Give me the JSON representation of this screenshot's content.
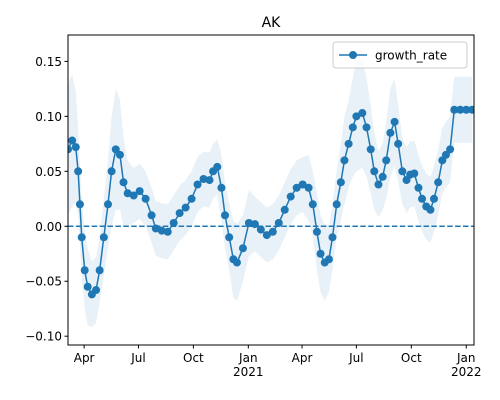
{
  "chart_data": {
    "type": "line",
    "title": "AK",
    "x": [
      18326,
      18333,
      18339,
      18343,
      18346,
      18349,
      18354,
      18359,
      18366,
      18373,
      18379,
      18386,
      18393,
      18399,
      18406,
      18413,
      18419,
      18426,
      18436,
      18446,
      18456,
      18466,
      18473,
      18483,
      18493,
      18503,
      18513,
      18523,
      18533,
      18543,
      18553,
      18563,
      18569,
      18576,
      18583,
      18589,
      18596,
      18603,
      18609,
      18619,
      18629,
      18639,
      18649,
      18659,
      18669,
      18679,
      18689,
      18699,
      18709,
      18719,
      18729,
      18736,
      18743,
      18749,
      18756,
      18763,
      18769,
      18776,
      18783,
      18789,
      18796,
      18803,
      18809,
      18819,
      18826,
      18833,
      18839,
      18846,
      18853,
      18859,
      18866,
      18873,
      18879,
      18886,
      18893,
      18899,
      18906,
      18913,
      18919,
      18926,
      18933,
      18939,
      18946,
      18953,
      18959,
      18966,
      18973,
      18983,
      18993,
      19003
    ],
    "series": [
      {
        "name": "growth_rate",
        "color": "#1f77b4",
        "values": [
          0.07,
          0.078,
          0.072,
          0.05,
          0.02,
          -0.01,
          -0.04,
          -0.055,
          -0.062,
          -0.058,
          -0.04,
          -0.01,
          0.02,
          0.05,
          0.07,
          0.065,
          0.04,
          0.03,
          0.028,
          0.032,
          0.025,
          0.01,
          -0.002,
          -0.004,
          -0.005,
          0.003,
          0.012,
          0.017,
          0.025,
          0.038,
          0.043,
          0.042,
          0.05,
          0.054,
          0.035,
          0.01,
          -0.01,
          -0.03,
          -0.033,
          -0.02,
          0.003,
          0.002,
          -0.003,
          -0.008,
          -0.005,
          0.003,
          0.015,
          0.027,
          0.035,
          0.038,
          0.035,
          0.02,
          -0.005,
          -0.025,
          -0.033,
          -0.03,
          -0.01,
          0.02,
          0.04,
          0.06,
          0.075,
          0.09,
          0.1,
          0.103,
          0.09,
          0.07,
          0.05,
          0.038,
          0.045,
          0.06,
          0.085,
          0.095,
          0.075,
          0.05,
          0.042,
          0.047,
          0.048,
          0.035,
          0.025,
          0.018,
          0.015,
          0.025,
          0.04,
          0.06,
          0.065,
          0.07,
          0.106,
          0.106,
          0.106,
          0.106
        ]
      }
    ],
    "band": {
      "color": "#1f77b4",
      "lower": [
        0.01,
        0.018,
        0.022,
        0.01,
        -0.015,
        -0.045,
        -0.075,
        -0.09,
        -0.092,
        -0.088,
        -0.07,
        -0.045,
        -0.02,
        0,
        0.015,
        0.015,
        0,
        0,
        0.003,
        0.007,
        0,
        -0.015,
        -0.027,
        -0.029,
        -0.03,
        -0.022,
        -0.013,
        -0.008,
        0,
        0.013,
        0.018,
        0.017,
        0.025,
        0.029,
        0.005,
        -0.02,
        -0.04,
        -0.065,
        -0.068,
        -0.05,
        -0.027,
        -0.023,
        -0.028,
        -0.033,
        -0.03,
        -0.022,
        -0.01,
        0.002,
        0.01,
        0.013,
        0.005,
        -0.01,
        -0.04,
        -0.06,
        -0.068,
        -0.06,
        -0.04,
        -0.01,
        0.005,
        0.02,
        0.035,
        0.045,
        0.05,
        0.053,
        0.045,
        0.03,
        0.015,
        0.008,
        0.015,
        0.025,
        0.045,
        0.055,
        0.04,
        0.02,
        0.012,
        0.017,
        0.018,
        0.005,
        -0.005,
        -0.012,
        -0.015,
        -0.005,
        0.01,
        0.03,
        0.035,
        0.04,
        0.076,
        0.076,
        0.076,
        0.076
      ],
      "upper": [
        0.13,
        0.138,
        0.122,
        0.09,
        0.055,
        0.025,
        -0.005,
        -0.02,
        -0.032,
        -0.028,
        -0.01,
        0.025,
        0.06,
        0.1,
        0.125,
        0.115,
        0.08,
        0.06,
        0.053,
        0.057,
        0.05,
        0.035,
        0.023,
        0.021,
        0.02,
        0.028,
        0.037,
        0.042,
        0.05,
        0.063,
        0.068,
        0.067,
        0.075,
        0.079,
        0.065,
        0.04,
        0.02,
        0.005,
        0.002,
        0.01,
        0.033,
        0.027,
        0.022,
        0.017,
        0.02,
        0.028,
        0.04,
        0.052,
        0.06,
        0.063,
        0.065,
        0.05,
        0.03,
        0.01,
        0.002,
        0,
        0.02,
        0.05,
        0.075,
        0.1,
        0.115,
        0.135,
        0.15,
        0.153,
        0.135,
        0.11,
        0.085,
        0.068,
        0.075,
        0.095,
        0.125,
        0.135,
        0.11,
        0.08,
        0.072,
        0.077,
        0.078,
        0.065,
        0.055,
        0.048,
        0.045,
        0.055,
        0.07,
        0.09,
        0.095,
        0.1,
        0.136,
        0.136,
        0.136,
        0.136
      ]
    },
    "reference_line": 0,
    "xlim": [
      18326,
      19006
    ],
    "xticks": [
      {
        "value": 18353,
        "label": "Apr"
      },
      {
        "value": 18444,
        "label": "Jul"
      },
      {
        "value": 18536,
        "label": "Oct"
      },
      {
        "value": 18628,
        "label": "Jan\n2021"
      },
      {
        "value": 18718,
        "label": "Apr"
      },
      {
        "value": 18809,
        "label": "Jul"
      },
      {
        "value": 18901,
        "label": "Oct"
      },
      {
        "value": 18993,
        "label": "Jan\n2022"
      }
    ],
    "ylim": [
      -0.108,
      0.174
    ],
    "yticks": [
      {
        "value": -0.1,
        "label": "−0.10"
      },
      {
        "value": -0.05,
        "label": "−0.05"
      },
      {
        "value": 0,
        "label": "0.00"
      },
      {
        "value": 0.05,
        "label": "0.05"
      },
      {
        "value": 0.1,
        "label": "0.10"
      },
      {
        "value": 0.15,
        "label": "0.15"
      }
    ],
    "legend": "upper right"
  }
}
